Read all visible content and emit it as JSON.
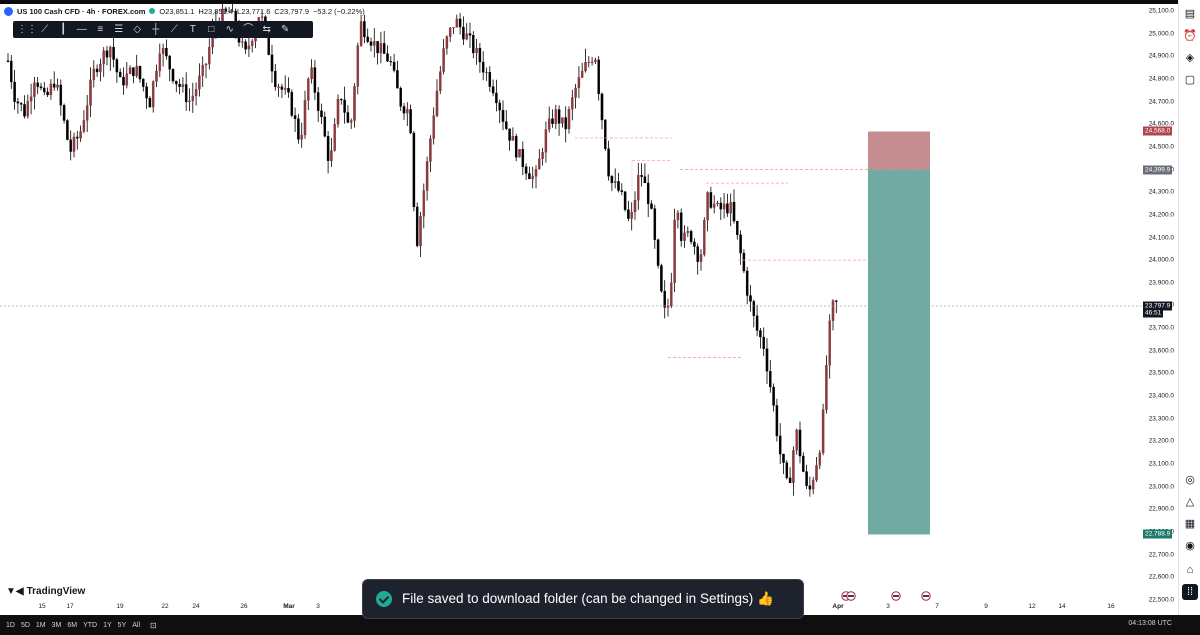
{
  "legend": {
    "symbol": "US 100 Cash CFD · 4h · FOREX.com",
    "open": "O23,851.1",
    "high": "H23,857.4",
    "low": "L23,771.6",
    "close": "C23,797.9",
    "change": "−53.2 (−0.22%)"
  },
  "colors": {
    "up": "#d1d4dc",
    "down": "#000000",
    "bear_body": "#8b3a3f",
    "stop_zone": "#c68d91",
    "target_zone": "#71aaa0",
    "toast_bg": "#1e222d",
    "toast_check": "#22ab94",
    "price_tag_dark": "#131722",
    "price_tag_red": "#b2444c",
    "price_tag_green": "#1b7a68"
  },
  "drawing_toolbar": {
    "tools": [
      "grid-icon",
      "trend-line-icon",
      "vertical-line-icon",
      "horizontal-line-icon",
      "parallel-channel-icon",
      "fib-retracement-icon",
      "eraser-icon",
      "cross-line-icon",
      "ray-icon",
      "text-icon",
      "rectangle-icon",
      "path-icon",
      "arc-icon",
      "measure-icon",
      "pen-icon"
    ]
  },
  "price_axis": {
    "labels": [
      "25,100.0",
      "25,000.0",
      "24,900.0",
      "24,800.0",
      "24,700.0",
      "24,600.0",
      "24,500.0",
      "24,400.0",
      "24,300.0",
      "24,200.0",
      "24,100.0",
      "24,000.0",
      "23,900.0",
      "23,800.0",
      "23,700.0",
      "23,600.0",
      "23,500.0",
      "23,400.0",
      "23,300.0",
      "23,200.0",
      "23,100.0",
      "23,000.0",
      "22,900.0",
      "22,800.0",
      "22,700.0",
      "22,600.0",
      "22,500.0"
    ],
    "tags": {
      "stop": "24,568.0",
      "entry": "24,399.9",
      "current": "23,797.9",
      "countdown": "46:51",
      "target": "22,788.9"
    }
  },
  "position_tool": {
    "entry": 24399.9,
    "stop": 24568.0,
    "target": 22788.9
  },
  "time_axis": {
    "labels": [
      "15",
      "17",
      "19",
      "22",
      "24",
      "26",
      "Mar",
      "3",
      "Apr",
      "3",
      "7",
      "9",
      "12",
      "14",
      "16"
    ]
  },
  "bottom_bar": {
    "ranges": [
      "1D",
      "5D",
      "1M",
      "3M",
      "6M",
      "YTD",
      "1Y",
      "5Y",
      "All"
    ],
    "clock": "04:13:08 UTC"
  },
  "branding": {
    "logo_text": "TradingView"
  },
  "toast": {
    "message": "File saved to download folder (can be changed in Settings) 👍"
  },
  "right_toolbar": {
    "top": [
      "watchlist-icon",
      "alerts-icon",
      "layers-icon",
      "chat-icon"
    ],
    "bottom": [
      "target-icon",
      "ideas-icon",
      "calendar-icon",
      "notifications-icon",
      "more-icon"
    ]
  }
}
